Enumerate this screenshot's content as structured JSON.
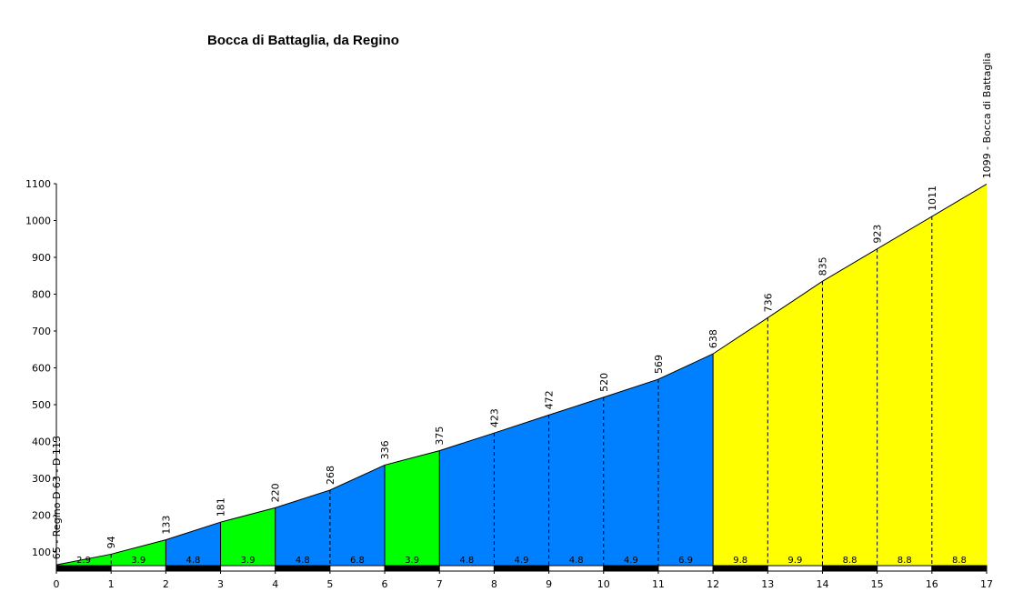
{
  "chart_data": {
    "type": "area",
    "title": "Bocca di Battaglia, da Regino",
    "xlabel": "",
    "ylabel": "",
    "xlim": [
      0,
      17
    ],
    "ylim": [
      55,
      1100
    ],
    "x_ticks": [
      "0",
      "1",
      "2",
      "3",
      "4",
      "5",
      "6",
      "7",
      "8",
      "9",
      "10",
      "11",
      "12",
      "13",
      "14",
      "15",
      "16",
      "17"
    ],
    "y_ticks": [
      "100",
      "200",
      "300",
      "400",
      "500",
      "600",
      "700",
      "800",
      "900",
      "1000",
      "1100"
    ],
    "x": [
      0,
      1,
      2,
      3,
      4,
      5,
      6,
      7,
      8,
      9,
      10,
      11,
      12,
      13,
      14,
      15,
      16,
      17
    ],
    "elevation": [
      65,
      94,
      133,
      181,
      220,
      268,
      336,
      375,
      423,
      472,
      520,
      569,
      638,
      736,
      835,
      923,
      1011,
      1099
    ],
    "elevation_labels": [
      "65 - Regino D 63 - D 113",
      "94",
      "133",
      "181",
      "220",
      "268",
      "336",
      "375",
      "423",
      "472",
      "520",
      "569",
      "638",
      "736",
      "835",
      "923",
      "1011",
      "1099 - Bocca di Battaglia"
    ],
    "segment_gradients": [
      "2.9",
      "3.9",
      "4.8",
      "3.9",
      "4.8",
      "6.8",
      "3.9",
      "4.8",
      "4.9",
      "4.8",
      "4.9",
      "6.9",
      "9.8",
      "9.9",
      "8.8",
      "8.8",
      "8.8"
    ],
    "segment_colors": [
      "#00ff00",
      "#00ff00",
      "#0080ff",
      "#00ff00",
      "#0080ff",
      "#0080ff",
      "#00ff00",
      "#0080ff",
      "#0080ff",
      "#0080ff",
      "#0080ff",
      "#0080ff",
      "#ffff00",
      "#ffff00",
      "#ffff00",
      "#ffff00",
      "#ffff00"
    ],
    "grid": false,
    "legend": "none"
  }
}
